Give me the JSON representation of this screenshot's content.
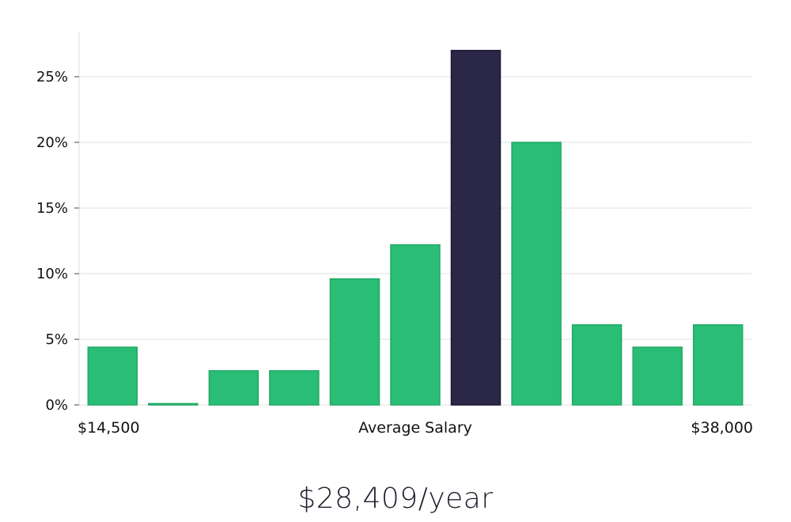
{
  "chart_data": {
    "type": "bar",
    "title": "",
    "xlabel": "Average Salary",
    "ylabel": "",
    "x_min_label": "$14,500",
    "x_max_label": "$38,000",
    "ylim": [
      0,
      28
    ],
    "yticks": [
      0,
      5,
      10,
      15,
      20,
      25
    ],
    "ytick_labels": [
      "0%",
      "5%",
      "10%",
      "15%",
      "20%",
      "25%"
    ],
    "values": [
      4.4,
      0.1,
      2.6,
      2.6,
      9.6,
      12.2,
      27.0,
      20.0,
      6.1,
      4.4,
      6.1
    ],
    "highlight_index": 6,
    "grid": true,
    "colors": {
      "bar": "#2abd75",
      "bar_stroke": "#22a866",
      "highlight": "#2a2747",
      "highlight_stroke": "#1b1838",
      "grid": "#e0e0e0",
      "axis": "#dddddd"
    }
  },
  "summary": {
    "average_salary": "$28,409/year"
  }
}
